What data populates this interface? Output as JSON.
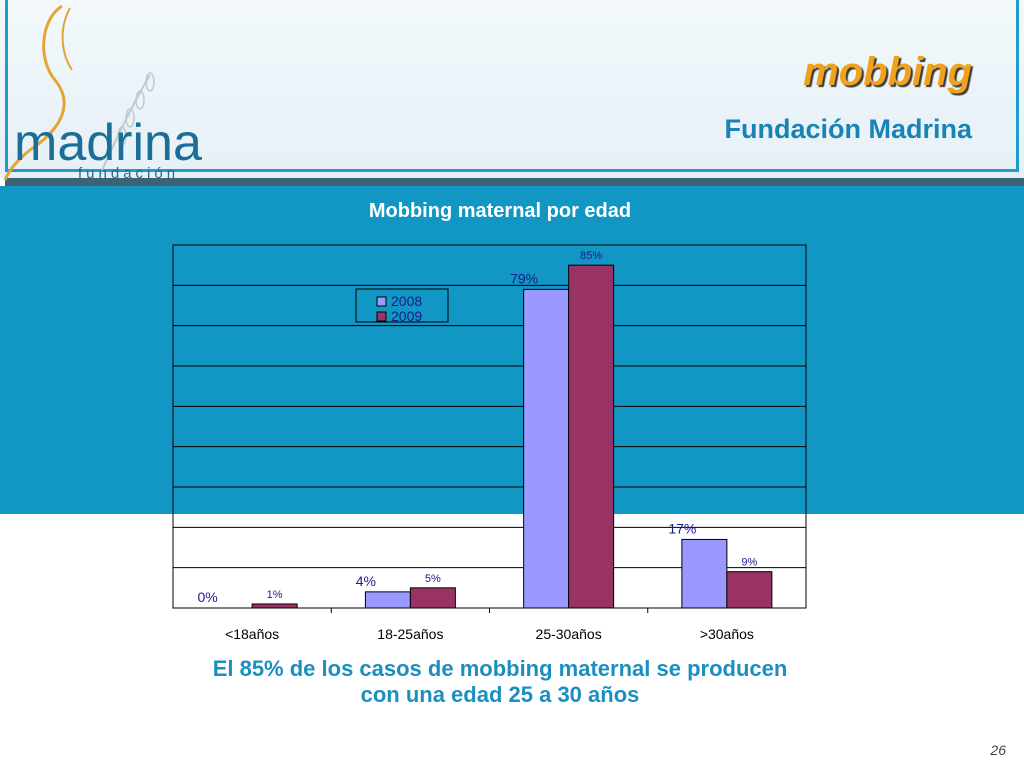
{
  "header": {
    "title": "mobbing",
    "subtitle": "Fundación Madrina",
    "logo_text": "madrina",
    "logo_subtext": "fundación"
  },
  "caption": {
    "line1": "El 85% de los casos de mobbing maternal se producen",
    "line2": "con una edad 25 a 30 años"
  },
  "page_number": "26",
  "colors": {
    "band": "#1296c3",
    "title": "#f0a11d",
    "subtitle": "#1883b5",
    "series_2008": "#9999ff",
    "series_2009": "#993366"
  },
  "chart_data": {
    "type": "bar",
    "title": "Mobbing maternal por edad",
    "categories": [
      "<18años",
      "18-25años",
      "25-30años",
      ">30años"
    ],
    "series": [
      {
        "name": "2008",
        "values": [
          0,
          4,
          79,
          17
        ],
        "labels": [
          "0%",
          "4%",
          "79%",
          "17%"
        ],
        "color": "#9999ff"
      },
      {
        "name": "2009",
        "values": [
          1,
          5,
          85,
          9
        ],
        "labels": [
          "1%",
          "5%",
          "85%",
          "9%"
        ],
        "color": "#993366"
      }
    ],
    "ylim": [
      0,
      90
    ],
    "grid": true,
    "legend": "top-center"
  }
}
